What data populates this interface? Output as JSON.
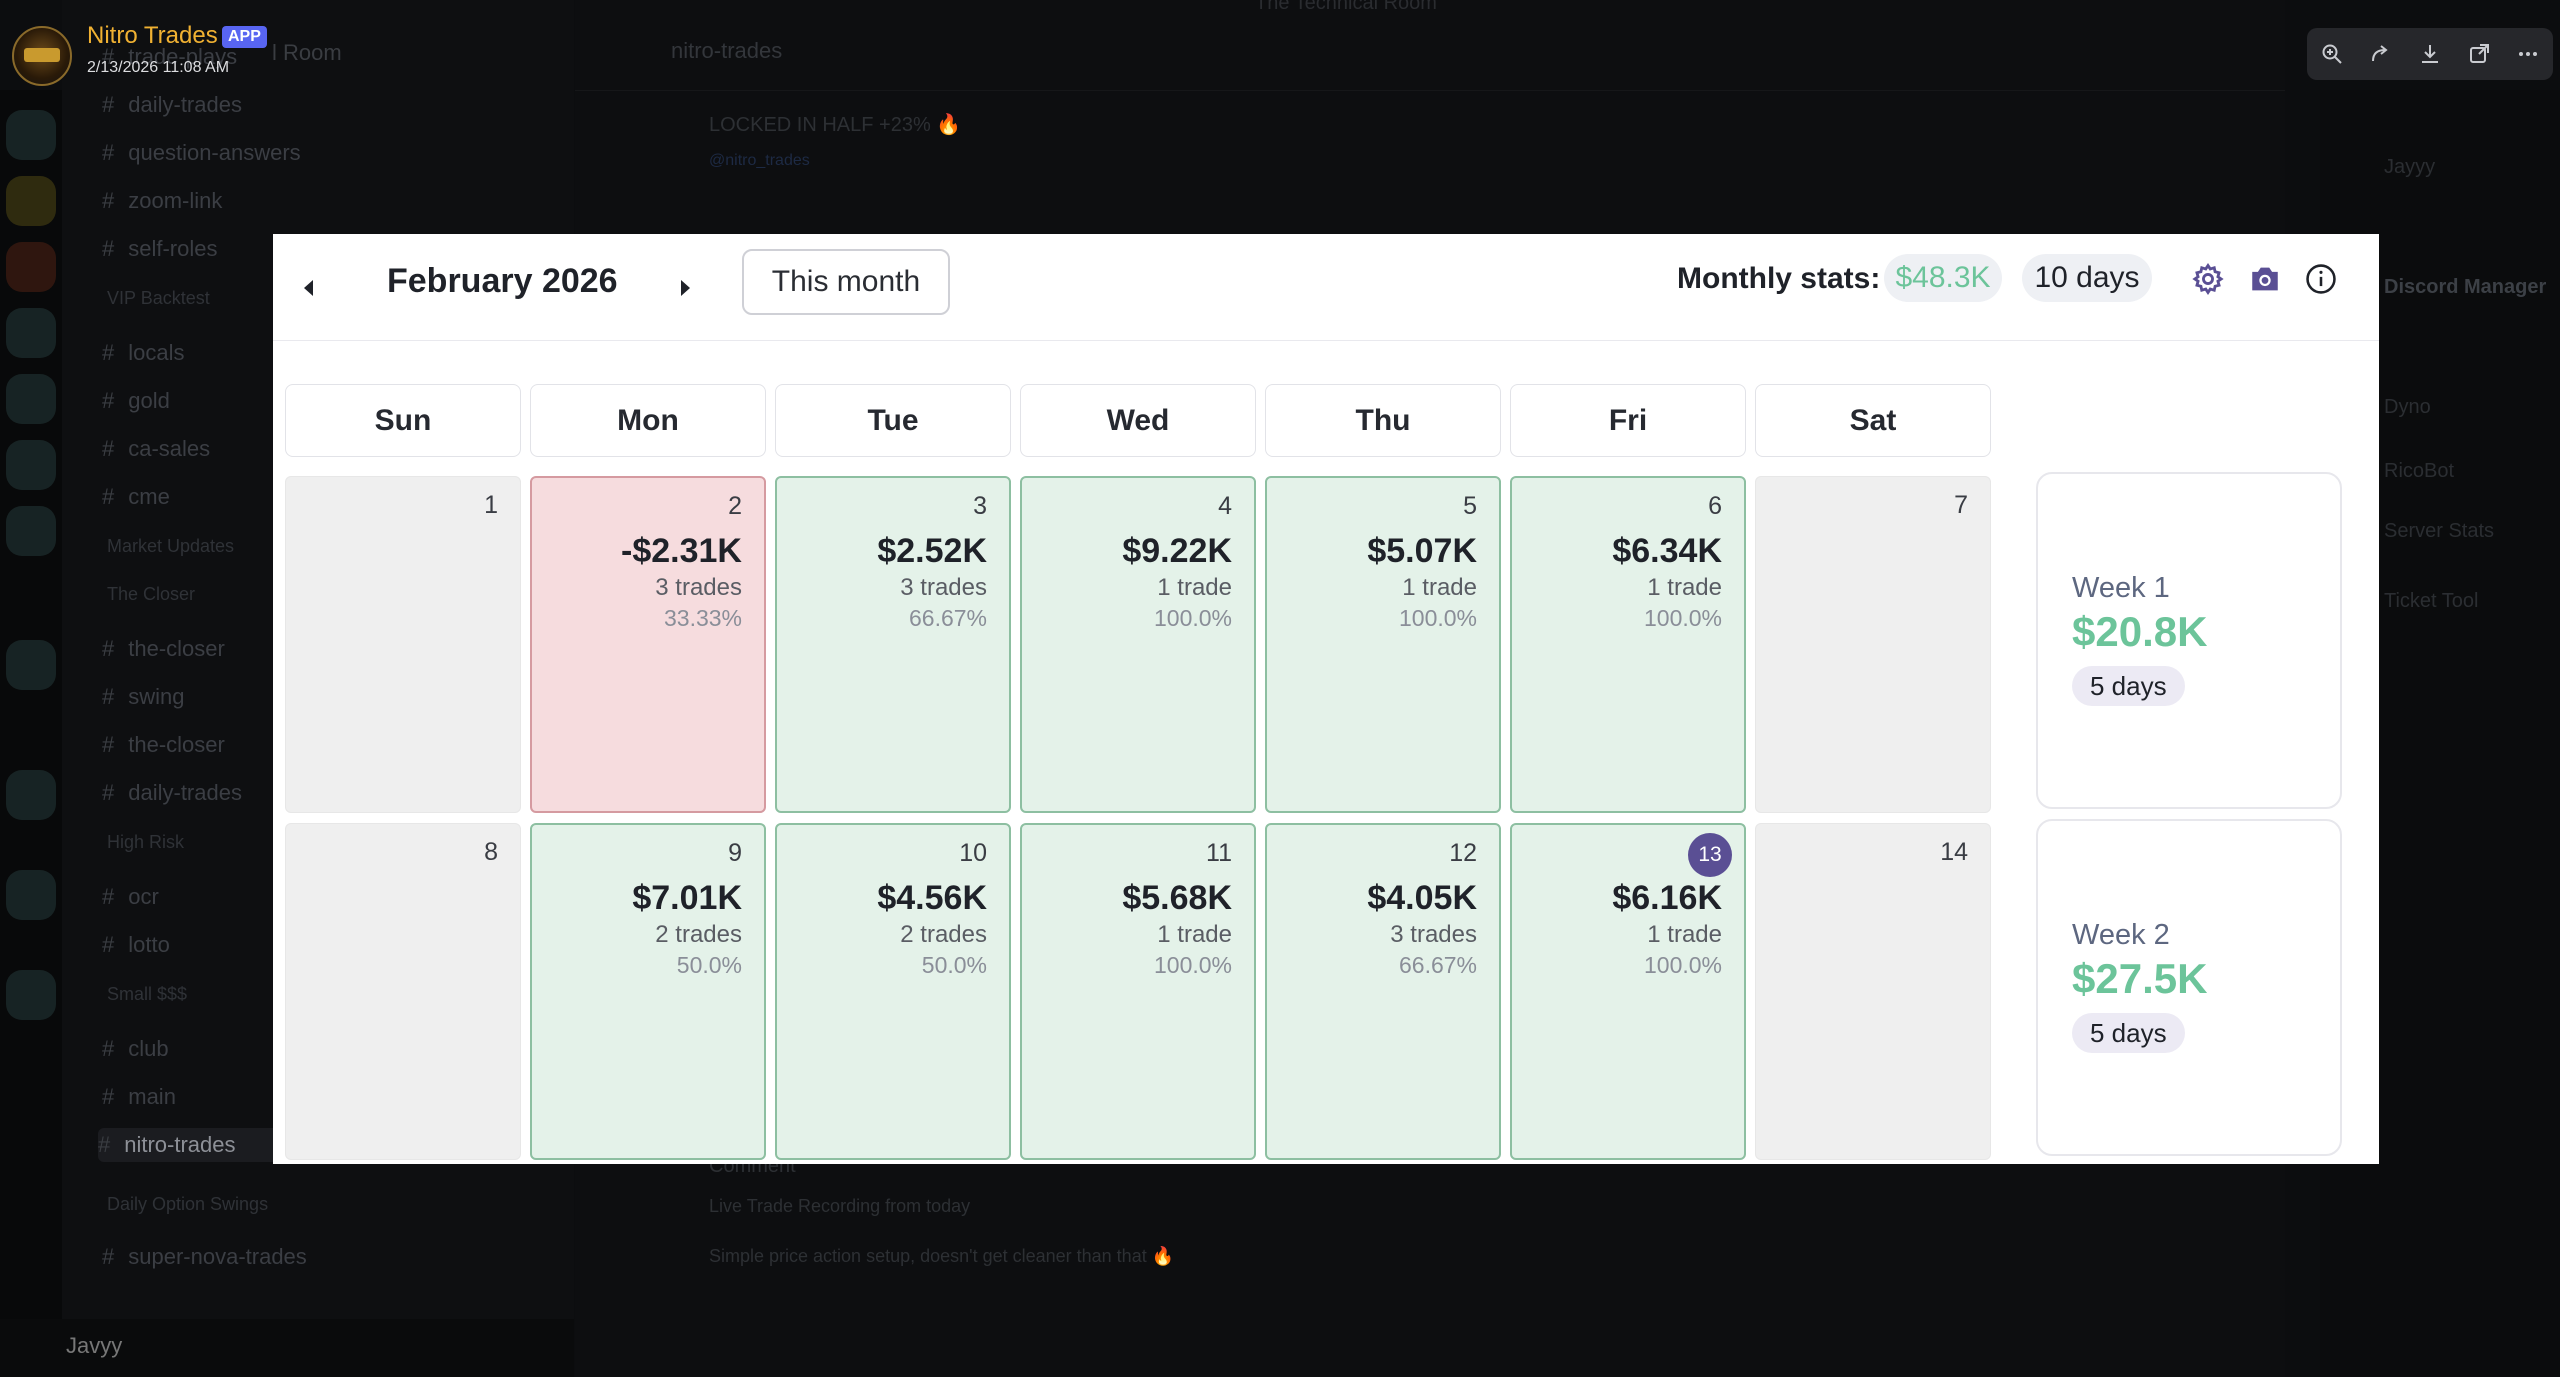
{
  "viewer": {
    "author": "Nitro Trades",
    "badge": "APP",
    "timestamp": "2/13/2026 11:08 AM",
    "toolbar": [
      {
        "name": "zoom-in-icon"
      },
      {
        "name": "share-icon"
      },
      {
        "name": "download-icon"
      },
      {
        "name": "open-external-icon"
      },
      {
        "name": "more-icon"
      }
    ]
  },
  "background": {
    "server_name_fragment": "l Room",
    "chat_channel": "nitro-trades",
    "chat_top": "The Technical Room",
    "chat_lines": [
      "LOCKED IN HALF +23% 🔥",
      "@nitro_trades",
      "Comment",
      "Live Trade Recording from today",
      "Simple price action setup, doesn't get cleaner than that 🔥"
    ],
    "channels": [
      "trade-plays",
      "daily-trades",
      "question-answers",
      "zoom-link",
      "self-roles",
      "VIP Backtest",
      "locals",
      "gold",
      "ca-sales",
      "cme",
      "Market Updates",
      "The Closer",
      "the-closer",
      "swing",
      "the-closer",
      "daily-trades",
      "High Risk",
      "ocr",
      "lotto",
      "Small $$$",
      "club",
      "main",
      "nitro-trades",
      "Daily Option Swings",
      "super-nova-trades"
    ],
    "user": "Javyy",
    "members": [
      "Jayyy",
      "Discord Manager",
      "Dyno",
      "RicoBot",
      "Server Stats",
      "Ticket Tool"
    ]
  },
  "calendar": {
    "month_label": "February 2026",
    "this_month_label": "This month",
    "stats_label": "Monthly stats:",
    "monthly_pnl": "$48.3K",
    "monthly_days": "10 days",
    "weekdays": [
      "Sun",
      "Mon",
      "Tue",
      "Wed",
      "Thu",
      "Fri",
      "Sat"
    ],
    "weeks": [
      {
        "label": "Week 1",
        "pnl": "$20.8K",
        "days": "5 days",
        "days_list": [
          {
            "day": "1",
            "status": "empty"
          },
          {
            "day": "2",
            "status": "loss",
            "pnl": "-$2.31K",
            "trades": "3 trades",
            "rate": "33.33%"
          },
          {
            "day": "3",
            "status": "win",
            "pnl": "$2.52K",
            "trades": "3 trades",
            "rate": "66.67%"
          },
          {
            "day": "4",
            "status": "win",
            "pnl": "$9.22K",
            "trades": "1 trade",
            "rate": "100.0%"
          },
          {
            "day": "5",
            "status": "win",
            "pnl": "$5.07K",
            "trades": "1 trade",
            "rate": "100.0%"
          },
          {
            "day": "6",
            "status": "win",
            "pnl": "$6.34K",
            "trades": "1 trade",
            "rate": "100.0%"
          },
          {
            "day": "7",
            "status": "empty"
          }
        ]
      },
      {
        "label": "Week 2",
        "pnl": "$27.5K",
        "days": "5 days",
        "days_list": [
          {
            "day": "8",
            "status": "empty"
          },
          {
            "day": "9",
            "status": "win",
            "pnl": "$7.01K",
            "trades": "2 trades",
            "rate": "50.0%"
          },
          {
            "day": "10",
            "status": "win",
            "pnl": "$4.56K",
            "trades": "2 trades",
            "rate": "50.0%"
          },
          {
            "day": "11",
            "status": "win",
            "pnl": "$5.68K",
            "trades": "1 trade",
            "rate": "100.0%"
          },
          {
            "day": "12",
            "status": "win",
            "pnl": "$4.05K",
            "trades": "3 trades",
            "rate": "66.67%"
          },
          {
            "day": "13",
            "status": "win",
            "today": true,
            "pnl": "$6.16K",
            "trades": "1 trade",
            "rate": "100.0%"
          },
          {
            "day": "14",
            "status": "empty"
          }
        ]
      }
    ]
  },
  "colors": {
    "win_bg": "#e4f2e9",
    "loss_bg": "#f6dcde",
    "profit_text": "#6cc49a",
    "today_badge": "#5a4f94",
    "author_name": "#f0b132"
  }
}
